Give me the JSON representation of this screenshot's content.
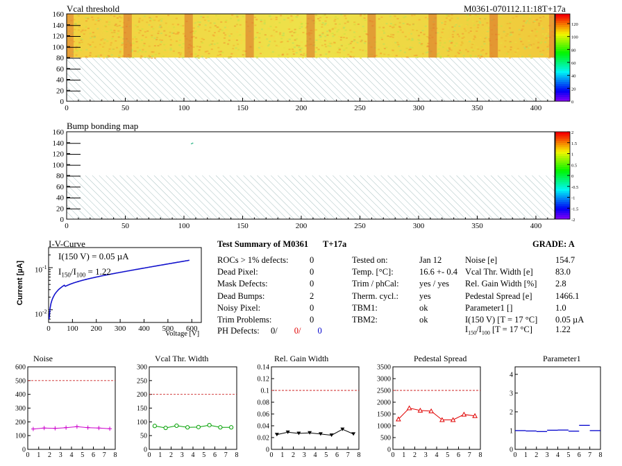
{
  "header": {
    "module_id": "M0361-070112.11:18T+17a"
  },
  "maps": {
    "vcal": {
      "title": "Vcal threshold",
      "x_ticks": [
        0,
        50,
        100,
        150,
        200,
        250,
        300,
        350,
        400
      ],
      "y_ticks": [
        0,
        20,
        40,
        60,
        80,
        100,
        120,
        140,
        160
      ],
      "xlim": [
        0,
        416
      ],
      "ylim": [
        0,
        160
      ],
      "palette_ticks": [
        0,
        20,
        40,
        60,
        80,
        100,
        120
      ],
      "zlim": [
        0,
        135
      ],
      "roc_boundaries": [
        52,
        104,
        156,
        208,
        260,
        312,
        364
      ],
      "data_rows": [
        80,
        160
      ]
    },
    "bump": {
      "title": "Bump bonding map",
      "x_ticks": [
        0,
        50,
        100,
        150,
        200,
        250,
        300,
        350,
        400
      ],
      "y_ticks": [
        0,
        20,
        40,
        60,
        80,
        100,
        120,
        140,
        160
      ],
      "xlim": [
        0,
        416
      ],
      "ylim": [
        0,
        160
      ],
      "palette_ticks": [
        "-2",
        "-1.5",
        "-1",
        "-0.5",
        "0",
        "0.5",
        "1",
        "1.5",
        "2"
      ],
      "zlim": [
        -2,
        2
      ],
      "dead_bumps": [
        {
          "x": 106,
          "y": 139
        },
        {
          "x": 107,
          "y": 140
        }
      ]
    }
  },
  "iv": {
    "title": "I-V-Curve",
    "ylabel": "Current [µA]",
    "xlabel": "Voltage [V]",
    "x_ticks": [
      0,
      100,
      200,
      300,
      400,
      500,
      600
    ],
    "xlim": [
      0,
      640
    ],
    "ylim_log": [
      0.005,
      0.3
    ],
    "legend_line1": "I(150 V) = 0.05 µA",
    "legend_line2_a": "I",
    "legend_line2_sub1": "150",
    "legend_line2_b": "/I",
    "legend_line2_sub2": "100",
    "legend_line2_c": "=  1.22",
    "ytick_1": "10",
    "ytick_1_exp": "-1",
    "ytick_2": "10",
    "ytick_2_exp": "-2"
  },
  "summary": {
    "title": "Test Summary of M0361",
    "tag": "T+17a",
    "grade_label": "GRADE:  A",
    "left": [
      {
        "label": "ROCs > 1% defects:",
        "value": "0"
      },
      {
        "label": "Dead Pixel:",
        "value": "0"
      },
      {
        "label": "Mask Defects:",
        "value": "0"
      },
      {
        "label": "Dead Bumps:",
        "value": "2"
      },
      {
        "label": "Noisy Pixel:",
        "value": "0"
      },
      {
        "label": "Trim Problems:",
        "value": "0"
      }
    ],
    "ph_label": "PH Defects:",
    "ph_values": [
      {
        "text": "0/",
        "color": "#000000"
      },
      {
        "text": "0/",
        "color": "#e00000"
      },
      {
        "text": "0",
        "color": "#0000cc"
      }
    ],
    "middle": [
      {
        "label": "Tested on:",
        "value": "Jan 12"
      },
      {
        "label": "Temp. [°C]:",
        "value": "16.6 +- 0.4"
      },
      {
        "label": "Trim / phCal:",
        "value": "yes / yes"
      },
      {
        "label": "Therm. cycl.:",
        "value": "yes"
      },
      {
        "label": "TBM1:",
        "value": "ok"
      },
      {
        "label": "TBM2:",
        "value": "ok"
      }
    ],
    "right": [
      {
        "label": "Noise [e]",
        "value": "154.7"
      },
      {
        "label": "Vcal Thr. Width [e]",
        "value": "83.0"
      },
      {
        "label": "Rel. Gain Width [%]",
        "value": "2.8"
      },
      {
        "label": "Pedestal Spread [e]",
        "value": "1466.1"
      },
      {
        "label": "Parameter1 []",
        "value": "1.0"
      },
      {
        "label": "I(150 V) [T = 17 °C]",
        "value": "0.05 µA"
      }
    ],
    "ratio_row": {
      "a": "I",
      "sub1": "150",
      "b": "/I",
      "sub2": "100",
      "c": "  [T = 17 °C]",
      "value": "1.22"
    }
  },
  "chart_data": [
    {
      "type": "line",
      "title": "Noise",
      "color": "#cc00cc",
      "marker": "cross",
      "x": [
        0.5,
        1.5,
        2.5,
        3.5,
        4.5,
        5.5,
        6.5,
        7.5
      ],
      "values": [
        148,
        155,
        153,
        158,
        165,
        158,
        155,
        150
      ],
      "ylim": [
        0,
        600
      ],
      "y_ticks": [
        0,
        100,
        200,
        300,
        400,
        500,
        600
      ],
      "threshold": 500,
      "x_ticks": [
        0,
        1,
        2,
        3,
        4,
        5,
        6,
        7,
        8
      ],
      "xlim": [
        0,
        8
      ]
    },
    {
      "type": "line",
      "title": "Vcal Thr. Width",
      "color": "#00a000",
      "marker": "circle",
      "x": [
        0.5,
        1.5,
        2.5,
        3.5,
        4.5,
        5.5,
        6.5,
        7.5
      ],
      "values": [
        85,
        78,
        86,
        80,
        81,
        88,
        80,
        80
      ],
      "ylim": [
        0,
        300
      ],
      "y_ticks": [
        0,
        50,
        100,
        150,
        200,
        250,
        300
      ],
      "threshold": 200,
      "x_ticks": [
        0,
        1,
        2,
        3,
        4,
        5,
        6,
        7,
        8
      ],
      "xlim": [
        0,
        8
      ]
    },
    {
      "type": "line",
      "title": "Rel. Gain Width",
      "color": "#000000",
      "marker": "tri-down",
      "x": [
        0.5,
        1.5,
        2.5,
        3.5,
        4.5,
        5.5,
        6.5,
        7.5
      ],
      "values": [
        0.025,
        0.029,
        0.027,
        0.028,
        0.026,
        0.024,
        0.034,
        0.026
      ],
      "ylim": [
        0,
        0.14
      ],
      "y_ticks": [
        "0",
        "0.02",
        "0.04",
        "0.06",
        "0.08",
        "0.1",
        "0.12",
        "0.14"
      ],
      "threshold": 0.1,
      "x_ticks": [
        0,
        1,
        2,
        3,
        4,
        5,
        6,
        7,
        8
      ],
      "xlim": [
        0,
        8
      ]
    },
    {
      "type": "line",
      "title": "Pedestal Spread",
      "color": "#e00000",
      "marker": "tri-up",
      "x": [
        0.5,
        1.5,
        2.5,
        3.5,
        4.5,
        5.5,
        6.5,
        7.5
      ],
      "values": [
        1280,
        1750,
        1650,
        1620,
        1250,
        1250,
        1480,
        1420
      ],
      "ylim": [
        0,
        3500
      ],
      "y_ticks": [
        0,
        500,
        1000,
        1500,
        2000,
        2500,
        3000,
        3500
      ],
      "threshold": 2500,
      "x_ticks": [
        0,
        1,
        2,
        3,
        4,
        5,
        6,
        7,
        8
      ],
      "xlim": [
        0,
        8
      ]
    },
    {
      "type": "line",
      "title": "Parameter1",
      "color": "#0000cc",
      "marker": "dash",
      "x": [
        0.5,
        1.5,
        2.5,
        3.5,
        4.5,
        5.5,
        6.5,
        7.5
      ],
      "values": [
        1.0,
        0.98,
        0.95,
        1.02,
        1.03,
        0.97,
        1.28,
        1.0
      ],
      "ylim": [
        0,
        4.4
      ],
      "y_ticks": [
        0,
        1,
        2,
        3,
        4
      ],
      "threshold": null,
      "x_ticks": [
        0,
        1,
        2,
        3,
        4,
        5,
        6,
        7,
        8
      ],
      "xlim": [
        0,
        8
      ]
    }
  ]
}
